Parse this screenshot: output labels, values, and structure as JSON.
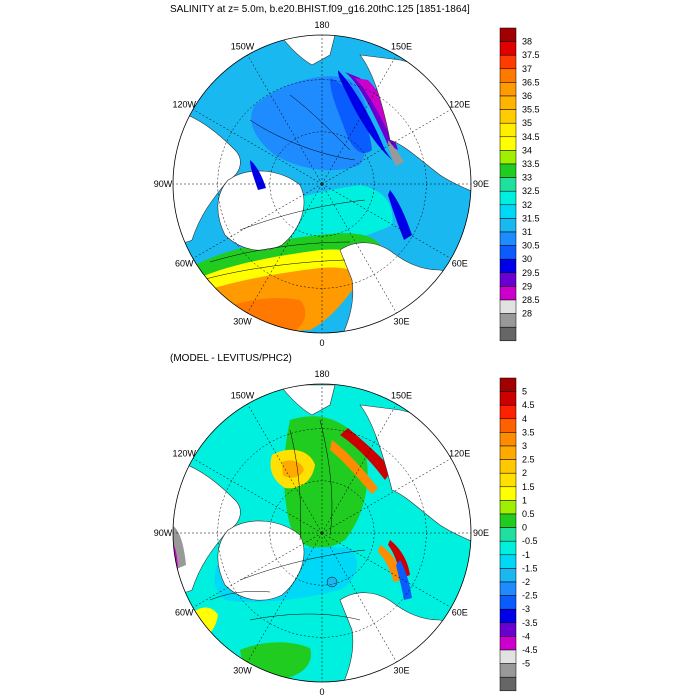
{
  "top_panel": {
    "title": "SALINITY at z=   5.0m, b.e20.BHIST.f09_g16.20thC.125 [1851-1864]",
    "lon_labels": [
      "180",
      "150E",
      "120E",
      "90E",
      "60E",
      "30E",
      "0",
      "30W",
      "60W",
      "90W",
      "120W",
      "150W"
    ],
    "colorbar": {
      "labels": [
        "38",
        "37.5",
        "37",
        "36.5",
        "36",
        "35.5",
        "35",
        "34.5",
        "34",
        "33.5",
        "33",
        "32.5",
        "32",
        "31.5",
        "31",
        "30.5",
        "30",
        "29.5",
        "29",
        "28.5",
        "28"
      ],
      "colors": [
        "#a00000",
        "#e00000",
        "#ff3c00",
        "#ff7800",
        "#ff9a00",
        "#ffb400",
        "#ffcc00",
        "#ffee00",
        "#ffff00",
        "#a0ee00",
        "#20cc20",
        "#20e0a0",
        "#00f0e0",
        "#00d8f8",
        "#1ab8f0",
        "#1e8cff",
        "#0a5cff",
        "#0000e8",
        "#6a00d0",
        "#cc00cc",
        "#e2e2e2",
        "#999999",
        "#666666"
      ]
    }
  },
  "bottom_panel": {
    "title": "(MODEL - LEVITUS/PHC2)",
    "lon_labels": [
      "180",
      "150E",
      "120E",
      "90E",
      "60E",
      "30E",
      "0",
      "30W",
      "60W",
      "90W",
      "120W",
      "150W"
    ],
    "colorbar": {
      "labels": [
        "5",
        "4.5",
        "4",
        "3.5",
        "3",
        "2.5",
        "2",
        "1.5",
        "1",
        "0.5",
        "0",
        "-0.5",
        "-1",
        "-1.5",
        "-2",
        "-2.5",
        "-3",
        "-3.5",
        "-4",
        "-4.5",
        "-5"
      ],
      "colors": [
        "#a00000",
        "#cc0000",
        "#ff2000",
        "#ff6000",
        "#ff8c00",
        "#ffaa00",
        "#ffc800",
        "#ffe000",
        "#ffff00",
        "#a0ee00",
        "#20cc20",
        "#20e0a0",
        "#00f0e0",
        "#00d8f8",
        "#1ab8f0",
        "#1e8cff",
        "#0a5cff",
        "#0000e8",
        "#6a00d0",
        "#cc00cc",
        "#e2e2e2",
        "#999999",
        "#666666"
      ]
    }
  },
  "colors": {
    "land": "#ffffff",
    "frame": "#000000"
  }
}
